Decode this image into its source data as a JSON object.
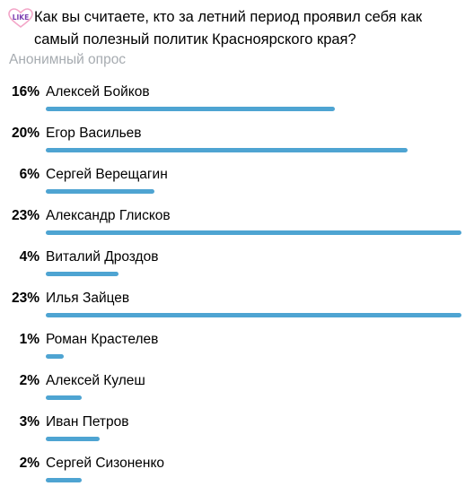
{
  "poll": {
    "badge_text": "LIKE",
    "question": "Как вы считаете, кто за летний период проявил себя как самый полезный политик Красноярского края?",
    "type_label": "Анонимный опрос",
    "accent_color": "#4ea4d2",
    "max_percent": 23,
    "options": [
      {
        "percent": 16,
        "percent_label": "16%",
        "label": "Алексей Бойков"
      },
      {
        "percent": 20,
        "percent_label": "20%",
        "label": "Егор Васильев"
      },
      {
        "percent": 6,
        "percent_label": "6%",
        "label": "Сергей Верещагин"
      },
      {
        "percent": 23,
        "percent_label": "23%",
        "label": "Александр Глисков"
      },
      {
        "percent": 4,
        "percent_label": "4%",
        "label": "Виталий Дроздов"
      },
      {
        "percent": 23,
        "percent_label": "23%",
        "label": "Илья Зайцев"
      },
      {
        "percent": 1,
        "percent_label": "1%",
        "label": "Роман Крастелев"
      },
      {
        "percent": 2,
        "percent_label": "2%",
        "label": "Алексей Кулеш"
      },
      {
        "percent": 3,
        "percent_label": "3%",
        "label": "Иван Петров"
      },
      {
        "percent": 2,
        "percent_label": "2%",
        "label": "Сергей Сизоненко"
      }
    ]
  }
}
